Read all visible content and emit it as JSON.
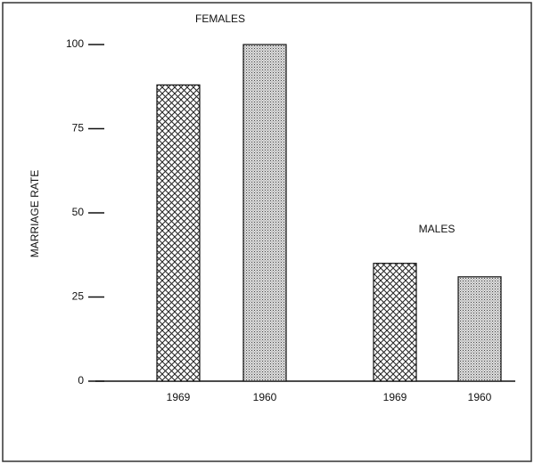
{
  "chart_data": {
    "type": "bar",
    "y_label": "MARRIAGE RATE",
    "annotations": [
      "FEMALES",
      "MALES"
    ],
    "categories": [
      "1969",
      "1960",
      "1969",
      "1960"
    ],
    "values": [
      88,
      100,
      35,
      31
    ],
    "fills": [
      "crosshatch",
      "stipple",
      "crosshatch",
      "stipple"
    ],
    "ylim": [
      0,
      100
    ],
    "yticks": [
      0,
      25,
      50,
      75,
      100
    ]
  }
}
